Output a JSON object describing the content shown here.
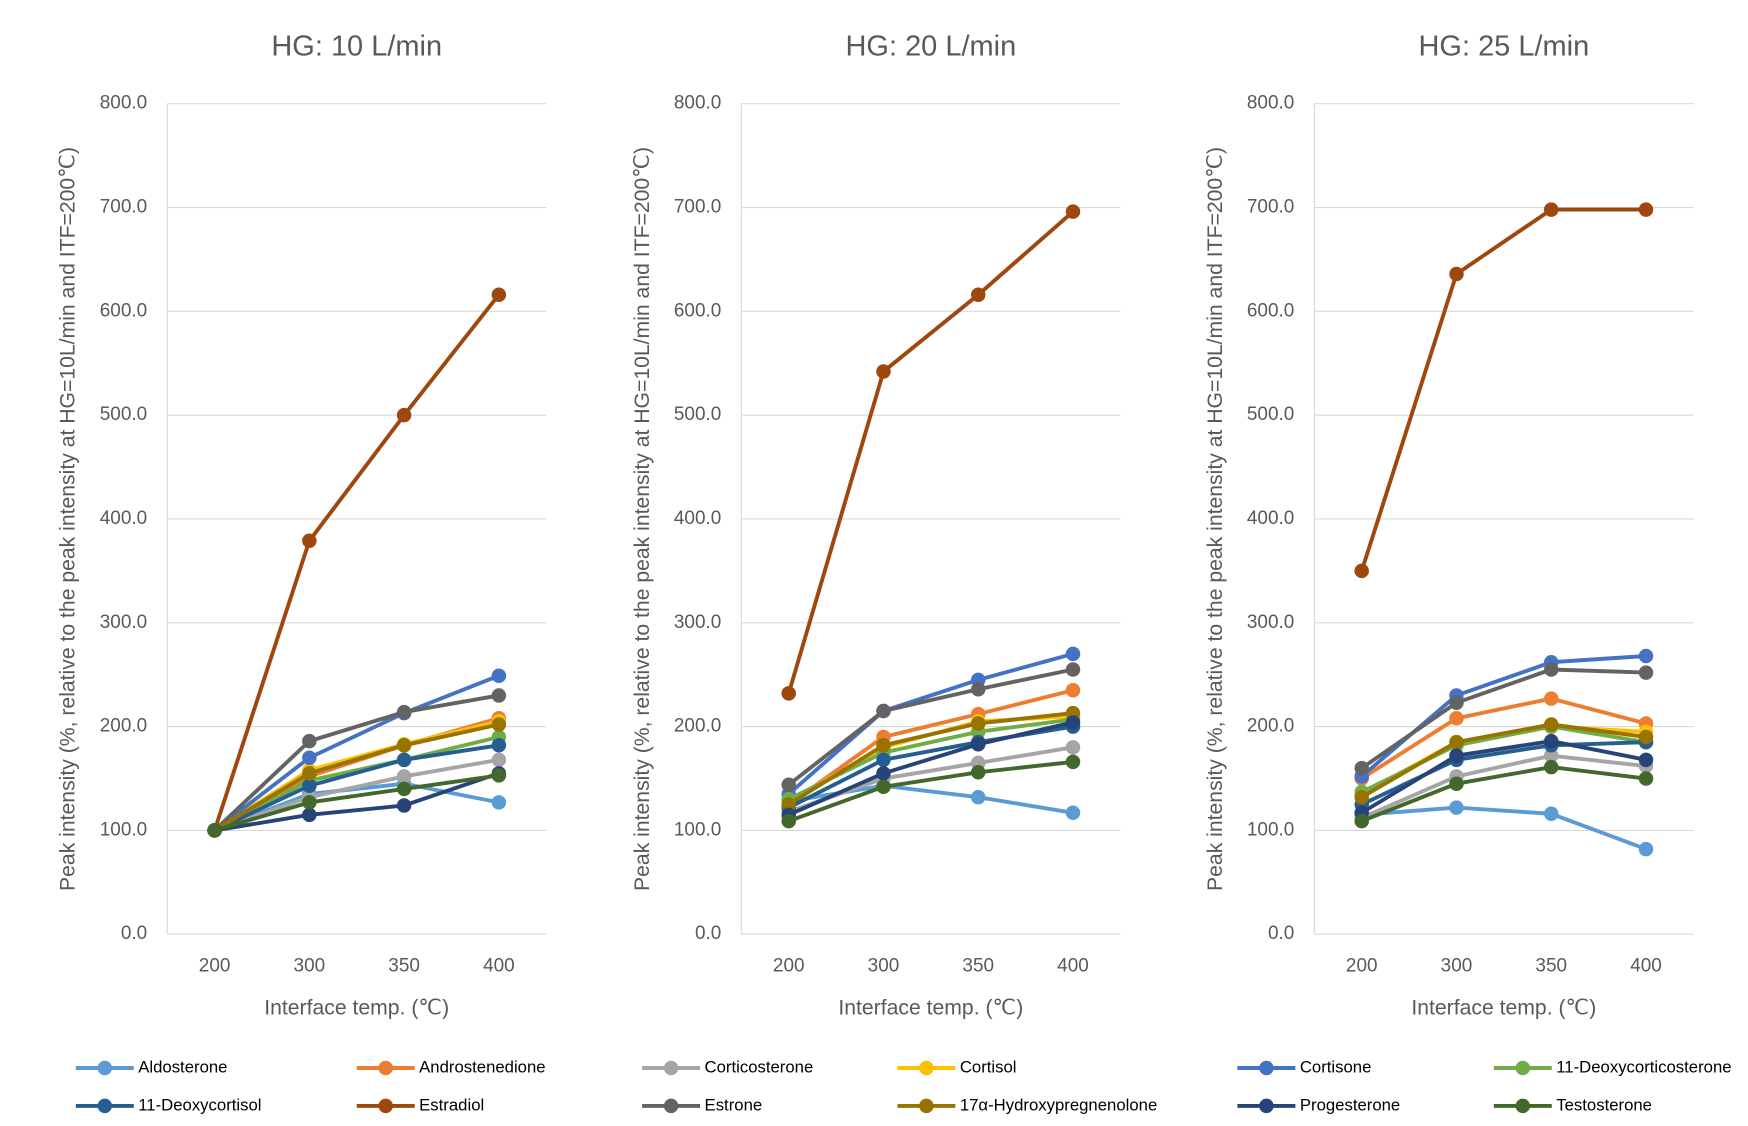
{
  "chart_data": [
    {
      "type": "line",
      "title": "HG: 10 L/min",
      "xlabel": "Interface temp. (℃)",
      "ylabel": "Peak intensity (%, relative to the peak intensity at HG=10L/min and ITF=200℃)",
      "categories": [
        "200",
        "300",
        "350",
        "400"
      ],
      "ylim": [
        0,
        800
      ],
      "grid": true,
      "yticks": [
        {
          "value": 0,
          "label": "0.0"
        },
        {
          "value": 100,
          "label": "100.0"
        },
        {
          "value": 200,
          "label": "200.0"
        },
        {
          "value": 300,
          "label": "300.0"
        },
        {
          "value": 400,
          "label": "400.0"
        },
        {
          "value": 500,
          "label": "500.0"
        },
        {
          "value": 600,
          "label": "600.0"
        },
        {
          "value": 700,
          "label": "700.0"
        },
        {
          "value": 800,
          "label": "800.0"
        }
      ],
      "series": [
        {
          "name": "Aldosterone",
          "color": "#5B9BD5",
          "values": [
            100,
            135,
            145,
            127
          ]
        },
        {
          "name": "Androstenedione",
          "color": "#ED7D31",
          "values": [
            100,
            152,
            182,
            208
          ]
        },
        {
          "name": "Corticosterone",
          "color": "#A5A5A5",
          "values": [
            100,
            132,
            152,
            168
          ]
        },
        {
          "name": "Cortisol",
          "color": "#FFC000",
          "values": [
            100,
            158,
            183,
            205
          ]
        },
        {
          "name": "Cortisone",
          "color": "#4472C4",
          "values": [
            100,
            170,
            213,
            249
          ]
        },
        {
          "name": "11-Deoxycorticosterone",
          "color": "#70AD47",
          "values": [
            100,
            148,
            168,
            190
          ]
        },
        {
          "name": "11-Deoxycortisol",
          "color": "#255E91",
          "values": [
            100,
            143,
            168,
            182
          ]
        },
        {
          "name": "Estradiol",
          "color": "#9E480E",
          "values": [
            100,
            379,
            500,
            616
          ]
        },
        {
          "name": "Estrone",
          "color": "#636363",
          "values": [
            100,
            186,
            214,
            230
          ]
        },
        {
          "name": "17α-Hydroxypregnenolone",
          "color": "#997300",
          "values": [
            100,
            155,
            182,
            202
          ]
        },
        {
          "name": "Progesterone",
          "color": "#264478",
          "values": [
            100,
            115,
            124,
            155
          ]
        },
        {
          "name": "Testosterone",
          "color": "#43682B",
          "values": [
            100,
            127,
            140,
            153
          ]
        }
      ]
    },
    {
      "type": "line",
      "title": "HG: 20 L/min",
      "xlabel": "Interface temp. (℃)",
      "ylabel": "Peak intensity (%, relative to the peak intensity at HG=10L/min and ITF=200℃)",
      "categories": [
        "200",
        "300",
        "350",
        "400"
      ],
      "ylim": [
        0,
        800
      ],
      "grid": true,
      "yticks": [
        {
          "value": 0,
          "label": "0.0"
        },
        {
          "value": 100,
          "label": "100.0"
        },
        {
          "value": 200,
          "label": "200.0"
        },
        {
          "value": 300,
          "label": "300.0"
        },
        {
          "value": 400,
          "label": "400.0"
        },
        {
          "value": 500,
          "label": "500.0"
        },
        {
          "value": 600,
          "label": "600.0"
        },
        {
          "value": 700,
          "label": "700.0"
        },
        {
          "value": 800,
          "label": "800.0"
        }
      ],
      "series": [
        {
          "name": "Aldosterone",
          "color": "#5B9BD5",
          "values": [
            128,
            143,
            132,
            117
          ]
        },
        {
          "name": "Androstenedione",
          "color": "#ED7D31",
          "values": [
            125,
            190,
            212,
            235
          ]
        },
        {
          "name": "Corticosterone",
          "color": "#A5A5A5",
          "values": [
            118,
            150,
            165,
            180
          ]
        },
        {
          "name": "Cortisol",
          "color": "#FFC000",
          "values": [
            128,
            180,
            205,
            210
          ]
        },
        {
          "name": "Cortisone",
          "color": "#4472C4",
          "values": [
            135,
            215,
            245,
            270
          ]
        },
        {
          "name": "11-Deoxycorticosterone",
          "color": "#70AD47",
          "values": [
            130,
            175,
            195,
            207
          ]
        },
        {
          "name": "11-Deoxycortisol",
          "color": "#255E91",
          "values": [
            122,
            168,
            185,
            200
          ]
        },
        {
          "name": "Estradiol",
          "color": "#9E480E",
          "values": [
            232,
            542,
            616,
            696
          ]
        },
        {
          "name": "Estrone",
          "color": "#636363",
          "values": [
            144,
            215,
            236,
            255
          ]
        },
        {
          "name": "17α-Hydroxypregnenolone",
          "color": "#997300",
          "values": [
            125,
            182,
            203,
            213
          ]
        },
        {
          "name": "Progesterone",
          "color": "#264478",
          "values": [
            115,
            155,
            183,
            204
          ]
        },
        {
          "name": "Testosterone",
          "color": "#43682B",
          "values": [
            109,
            142,
            156,
            166
          ]
        }
      ]
    },
    {
      "type": "line",
      "title": "HG: 25 L/min",
      "xlabel": "Interface temp. (℃)",
      "ylabel": "Peak intensity (%, relative to the peak intensity at HG=10L/min and ITF=200℃)",
      "categories": [
        "200",
        "300",
        "350",
        "400"
      ],
      "ylim": [
        0,
        800
      ],
      "grid": true,
      "yticks": [
        {
          "value": 0,
          "label": "0.0"
        },
        {
          "value": 100,
          "label": "100.0"
        },
        {
          "value": 200,
          "label": "200.0"
        },
        {
          "value": 300,
          "label": "300.0"
        },
        {
          "value": 400,
          "label": "400.0"
        },
        {
          "value": 500,
          "label": "500.0"
        },
        {
          "value": 600,
          "label": "600.0"
        },
        {
          "value": 700,
          "label": "700.0"
        },
        {
          "value": 800,
          "label": "800.0"
        }
      ],
      "series": [
        {
          "name": "Aldosterone",
          "color": "#5B9BD5",
          "values": [
            115,
            122,
            116,
            82
          ]
        },
        {
          "name": "Androstenedione",
          "color": "#ED7D31",
          "values": [
            150,
            208,
            227,
            203
          ]
        },
        {
          "name": "Corticosterone",
          "color": "#A5A5A5",
          "values": [
            112,
            152,
            172,
            162
          ]
        },
        {
          "name": "Cortisol",
          "color": "#FFC000",
          "values": [
            135,
            185,
            200,
            195
          ]
        },
        {
          "name": "Cortisone",
          "color": "#4472C4",
          "values": [
            152,
            230,
            262,
            268
          ]
        },
        {
          "name": "11-Deoxycorticosterone",
          "color": "#70AD47",
          "values": [
            137,
            182,
            200,
            185
          ]
        },
        {
          "name": "11-Deoxycortisol",
          "color": "#255E91",
          "values": [
            125,
            168,
            182,
            185
          ]
        },
        {
          "name": "Estradiol",
          "color": "#9E480E",
          "values": [
            350,
            636,
            698,
            698
          ]
        },
        {
          "name": "Estrone",
          "color": "#636363",
          "values": [
            160,
            223,
            255,
            252
          ]
        },
        {
          "name": "17α-Hydroxypregnenolone",
          "color": "#997300",
          "values": [
            132,
            185,
            202,
            190
          ]
        },
        {
          "name": "Progesterone",
          "color": "#264478",
          "values": [
            117,
            172,
            186,
            168
          ]
        },
        {
          "name": "Testosterone",
          "color": "#43682B",
          "values": [
            109,
            145,
            161,
            150
          ]
        }
      ]
    }
  ]
}
